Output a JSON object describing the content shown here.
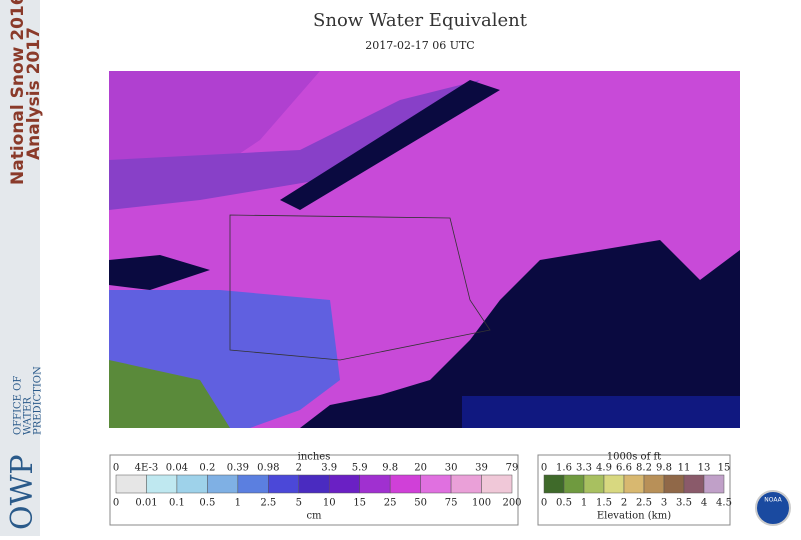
{
  "sidebar": {
    "lines": [
      "National Snow 2016-",
      "Analysis 2017"
    ],
    "logo": "OWP",
    "office": [
      "OFFICE OF",
      "WATER",
      "PREDICTION"
    ]
  },
  "header": {
    "title": "Snow Water Equivalent",
    "subtitle": "2017-02-17 06 UTC"
  },
  "snow_legend": {
    "top_unit": "inches",
    "top_labels": [
      "0",
      "4E-3",
      "0.04",
      "0.2",
      "0.39",
      "0.98",
      "2",
      "3.9",
      "5.9",
      "9.8",
      "20",
      "30",
      "39",
      "79"
    ],
    "bottom_labels": [
      "0",
      "0.01",
      "0.1",
      "0.5",
      "1",
      "2.5",
      "5",
      "10",
      "15",
      "25",
      "50",
      "75",
      "100",
      "200"
    ],
    "bottom_unit": "cm",
    "colors": [
      "#e6e6e6",
      "#bfe8f0",
      "#9ed2ea",
      "#7fb0e4",
      "#5b7fe0",
      "#4b48d8",
      "#4a2bc0",
      "#6a20c4",
      "#a030d0",
      "#d040d8",
      "#e070e0",
      "#eaa0d8",
      "#f0c8d8"
    ]
  },
  "elevation_legend": {
    "top_unit": "1000s of ft",
    "top_labels": [
      "0",
      "1.6",
      "3.3",
      "4.9",
      "6.6",
      "8.2",
      "9.8",
      "11",
      "13",
      "15"
    ],
    "bottom_labels": [
      "0",
      "0.5",
      "1",
      "1.5",
      "2",
      "2.5",
      "3",
      "3.5",
      "4",
      "4.5"
    ],
    "bottom_unit": "Elevation (km)",
    "colors": [
      "#3f6a2a",
      "#6f9a3f",
      "#a8c060",
      "#d8d880",
      "#d8b870",
      "#b89058",
      "#906848",
      "#8a5a6a",
      "#c0a0c8"
    ]
  },
  "logo": "NOAA"
}
